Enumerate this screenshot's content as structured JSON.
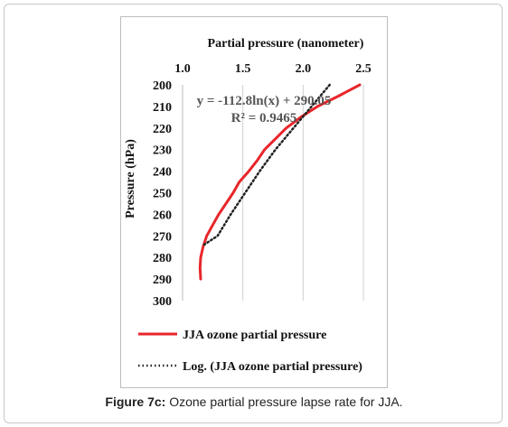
{
  "chart_data": {
    "type": "line",
    "title": "",
    "xlabel": "Partial pressure (nanometer)",
    "ylabel": "Pressure (hPa)",
    "xlim": [
      1.0,
      2.5
    ],
    "ylim": [
      300,
      200
    ],
    "x_ticks": [
      "1.0",
      "1.5",
      "2.0",
      "2.5"
    ],
    "y_ticks": [
      "200",
      "210",
      "220",
      "230",
      "240",
      "250",
      "260",
      "270",
      "280",
      "290",
      "300"
    ],
    "x_axis_position": "top",
    "y_inverted": true,
    "grid": "vertical",
    "series": [
      {
        "name": "JJA ozone partial pressure",
        "color": "#e8262a",
        "style": "solid",
        "points": [
          [
            2.47,
            200
          ],
          [
            2.3,
            205
          ],
          [
            2.12,
            210
          ],
          [
            1.98,
            215
          ],
          [
            1.86,
            220
          ],
          [
            1.77,
            225
          ],
          [
            1.68,
            230
          ],
          [
            1.62,
            235
          ],
          [
            1.55,
            240
          ],
          [
            1.47,
            245
          ],
          [
            1.42,
            250
          ],
          [
            1.36,
            255
          ],
          [
            1.3,
            260
          ],
          [
            1.25,
            265
          ],
          [
            1.2,
            270
          ],
          [
            1.17,
            275
          ],
          [
            1.15,
            280
          ],
          [
            1.145,
            285
          ],
          [
            1.15,
            290
          ]
        ]
      },
      {
        "name": "Log. (JJA ozone partial pressure)",
        "color": "#222222",
        "style": "dotted",
        "points": [
          [
            2.22,
            200
          ],
          [
            2.07,
            210
          ],
          [
            1.92,
            220
          ],
          [
            1.77,
            230
          ],
          [
            1.64,
            240
          ],
          [
            1.52,
            250
          ],
          [
            1.4,
            260
          ],
          [
            1.29,
            270
          ],
          [
            1.18,
            274
          ]
        ]
      }
    ],
    "annotations": [
      "y = -112.8ln(x) + 290.05",
      "R² = 0.9465"
    ]
  },
  "legend": {
    "items": [
      {
        "label": "JJA ozone partial pressure"
      },
      {
        "label": "Log. (JJA ozone partial pressure)"
      }
    ]
  },
  "caption": {
    "prefix": "Figure 7c:",
    "text": " Ozone partial pressure lapse rate for JJA."
  }
}
